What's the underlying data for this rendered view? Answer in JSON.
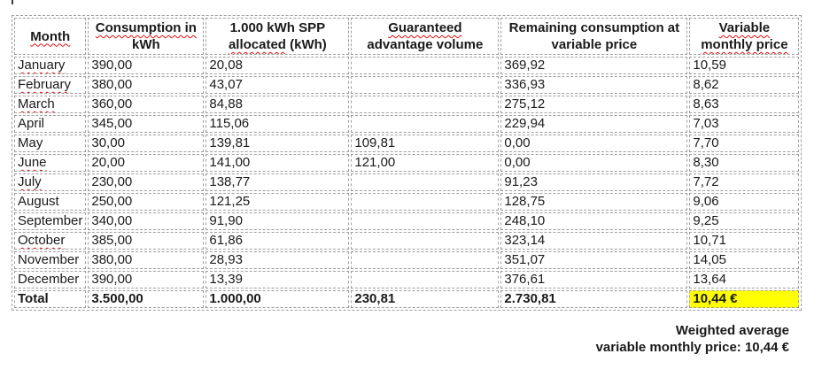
{
  "colors": {
    "highlight": "#ffff00",
    "squiggle": "#e01010",
    "border": "#9e9e9e",
    "text": "#1a1a1a"
  },
  "table": {
    "headers": [
      {
        "name": "month",
        "segments": [
          {
            "text": "Month",
            "wavy": true
          }
        ]
      },
      {
        "name": "consumption-kwh",
        "segments": [
          {
            "text": "Consumption in",
            "wavy": true
          },
          {
            "text": " kWh",
            "wavy": false
          }
        ]
      },
      {
        "name": "spp-allocated",
        "segments": [
          {
            "text": "1.000 kWh SPP ",
            "wavy": false
          },
          {
            "text": "allocated",
            "wavy": true
          },
          {
            "text": " (kWh)",
            "wavy": false
          }
        ]
      },
      {
        "name": "guaranteed-advantage-volume",
        "segments": [
          {
            "text": "Guaranteed",
            "wavy": true
          },
          {
            "text": " advantage volume",
            "wavy": false
          }
        ]
      },
      {
        "name": "remaining-consumption",
        "segments": [
          {
            "text": "Remaining consumption at variable price",
            "wavy": false
          }
        ]
      },
      {
        "name": "variable-monthly-price",
        "segments": [
          {
            "text": "Variable monthly price",
            "wavy": true
          }
        ]
      }
    ],
    "rows": [
      {
        "month": "January",
        "month_wavy": true,
        "values": [
          "390,00",
          "20,08",
          "",
          "369,92",
          "10,59"
        ]
      },
      {
        "month": "February",
        "month_wavy": true,
        "values": [
          "380,00",
          "43,07",
          "",
          "336,93",
          "8,62"
        ]
      },
      {
        "month": "March",
        "month_wavy": true,
        "values": [
          "360,00",
          "84,88",
          "",
          "275,12",
          "8,63"
        ]
      },
      {
        "month": "April",
        "month_wavy": false,
        "values": [
          "345,00",
          "115,06",
          "",
          "229,94",
          "7,03"
        ]
      },
      {
        "month": "May",
        "month_wavy": false,
        "values": [
          "30,00",
          "139,81",
          "109,81",
          "0,00",
          "7,70"
        ]
      },
      {
        "month": "June",
        "month_wavy": true,
        "values": [
          "20,00",
          "141,00",
          "121,00",
          "0,00",
          "8,30"
        ]
      },
      {
        "month": "July",
        "month_wavy": true,
        "values": [
          "230,00",
          "138,77",
          "",
          "91,23",
          "7,72"
        ]
      },
      {
        "month": "August",
        "month_wavy": false,
        "values": [
          "250,00",
          "121,25",
          "",
          "128,75",
          "9,06"
        ]
      },
      {
        "month": "September",
        "month_wavy": false,
        "values": [
          "340,00",
          "91,90",
          "",
          "248,10",
          "9,25"
        ]
      },
      {
        "month": "October",
        "month_wavy": true,
        "values": [
          "385,00",
          "61,86",
          "",
          "323,14",
          "10,71"
        ]
      },
      {
        "month": "November",
        "month_wavy": false,
        "values": [
          "380,00",
          "28,93",
          "",
          "351,07",
          "14,05"
        ]
      },
      {
        "month": "December",
        "month_wavy": false,
        "values": [
          "390,00",
          "13,39",
          "",
          "376,61",
          "13,64"
        ]
      },
      {
        "month": "Total",
        "month_wavy": false,
        "bold": true,
        "highlight_last": true,
        "values": [
          "3.500,00",
          "1.000,00",
          "230,81",
          "2.730,81",
          "10,44 €"
        ]
      }
    ]
  },
  "footer": {
    "line1": "Weighted average",
    "line2": "variable monthly price: 10,44 €"
  }
}
